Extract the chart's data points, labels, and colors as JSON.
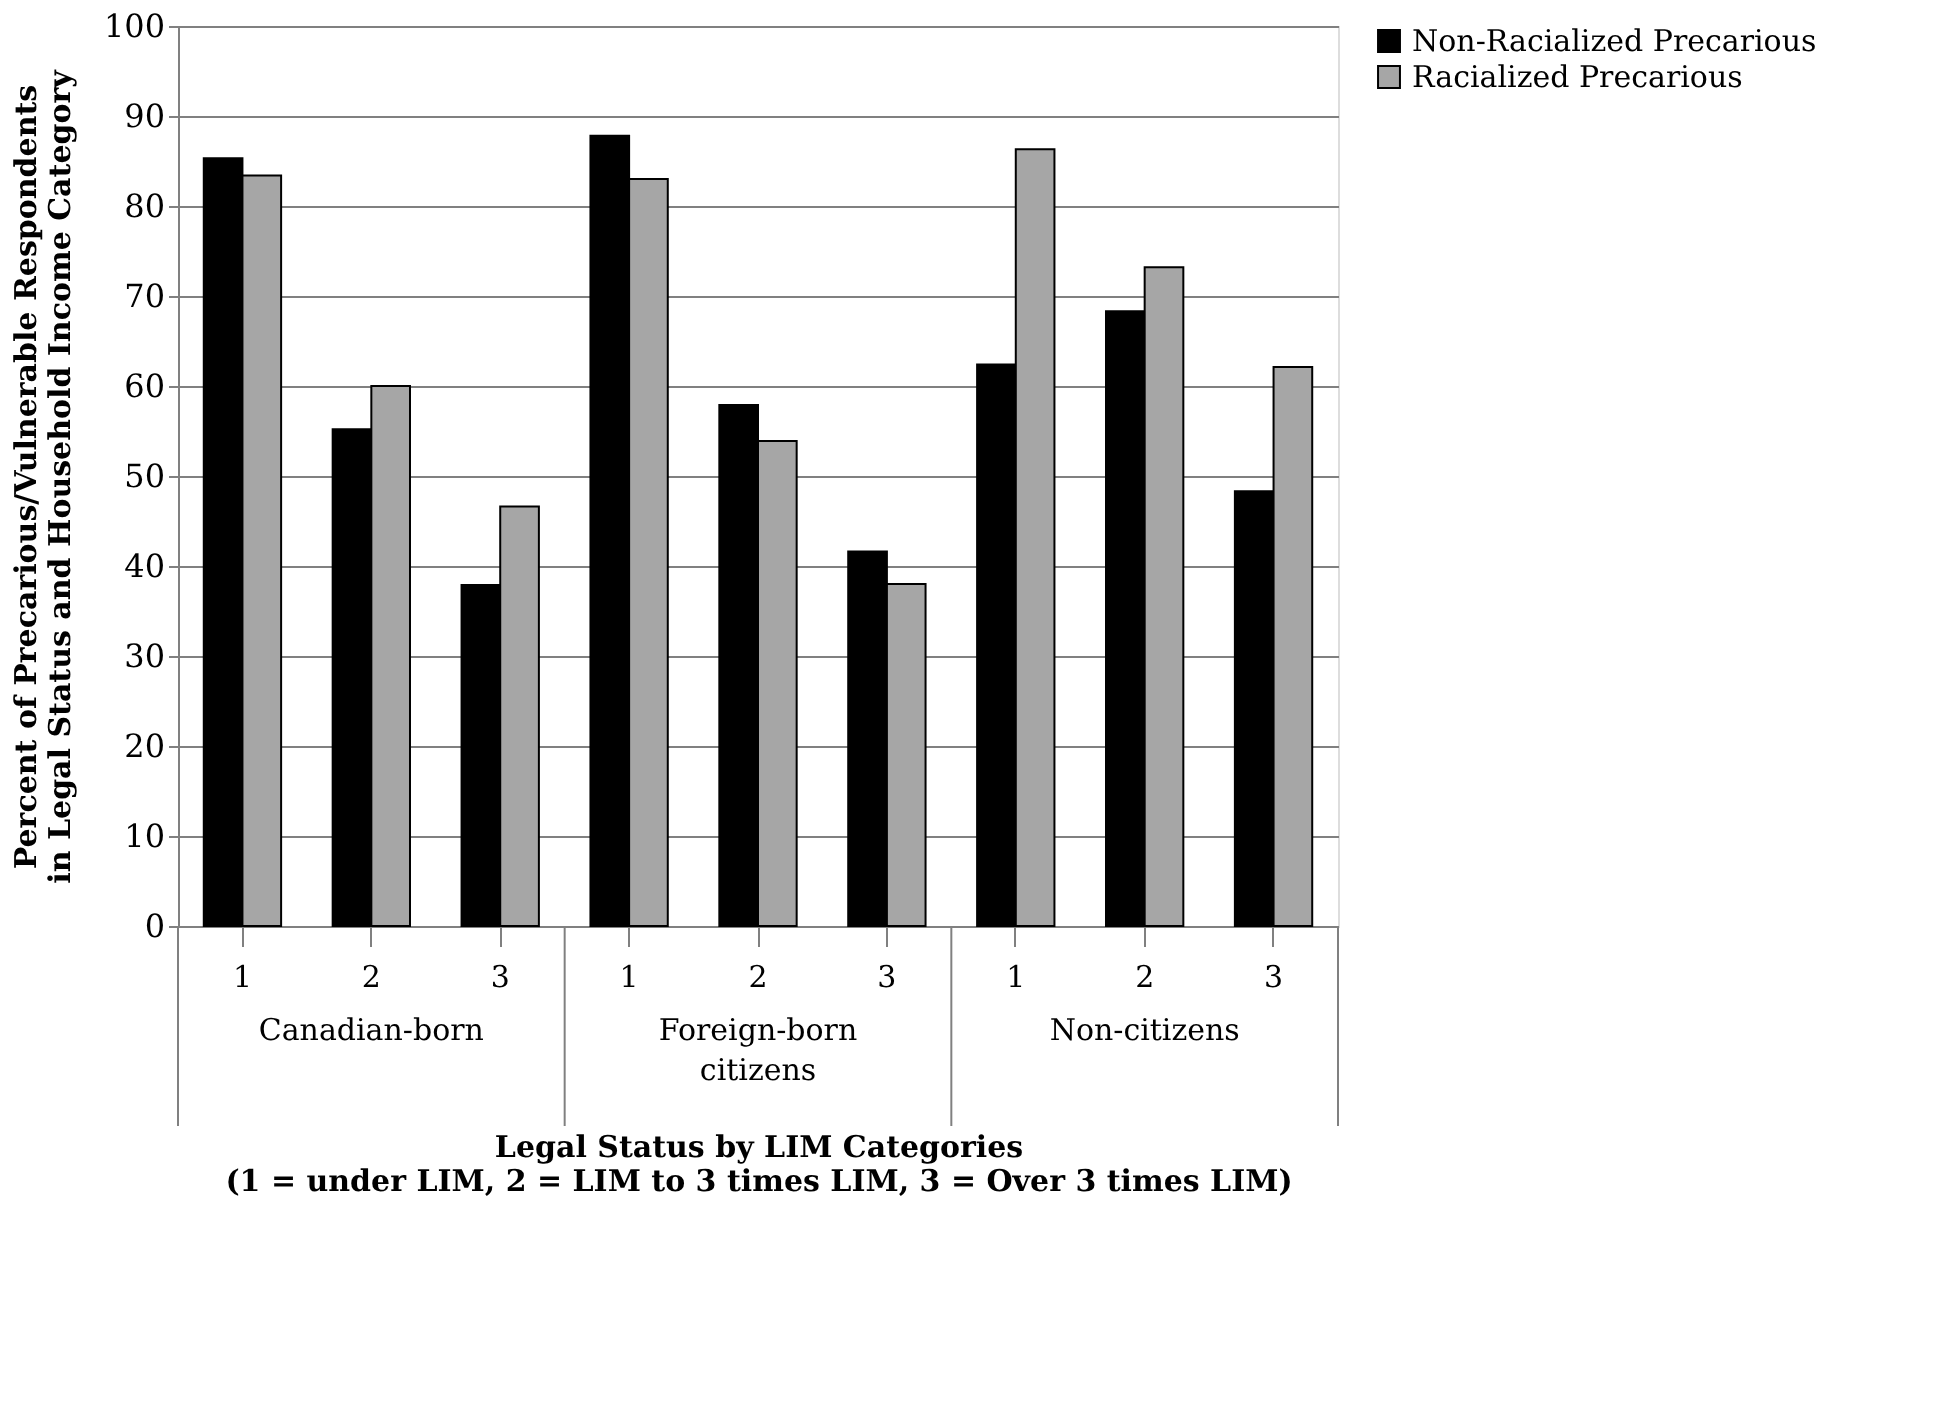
{
  "chart_data": {
    "type": "bar",
    "xlabel": "Legal Status by LIM Categories\n(1 = under LIM, 2 = LIM to 3 times LIM, 3 = Over 3 times LIM)",
    "ylabel": "Percent of Precarious/Vulnerable Respondents\nin Legal Status and Household Income Category",
    "categories": [
      "1",
      "2",
      "3",
      "1",
      "2",
      "3",
      "1",
      "2",
      "3"
    ],
    "annotations": [
      "Canadian-born",
      "Foreign-born\ncitizens",
      "Non-citizens"
    ],
    "series": [
      {
        "name": "Non-Racialized Precarious",
        "color": "#000000",
        "values": [
          85.3,
          55.2,
          37.9,
          87.8,
          57.9,
          41.6,
          62.4,
          68.3,
          48.3
        ]
      },
      {
        "name": "Racialized Precarious",
        "color": "#a6a6a6",
        "values": [
          83.4,
          60.0,
          46.6,
          83.0,
          53.9,
          38.0,
          86.3,
          73.2,
          62.1
        ]
      }
    ],
    "ylim": [
      0,
      100
    ],
    "yticks": [
      0,
      10,
      20,
      30,
      40,
      50,
      60,
      70,
      80,
      90,
      100
    ],
    "grid": "y",
    "legend": "right"
  }
}
